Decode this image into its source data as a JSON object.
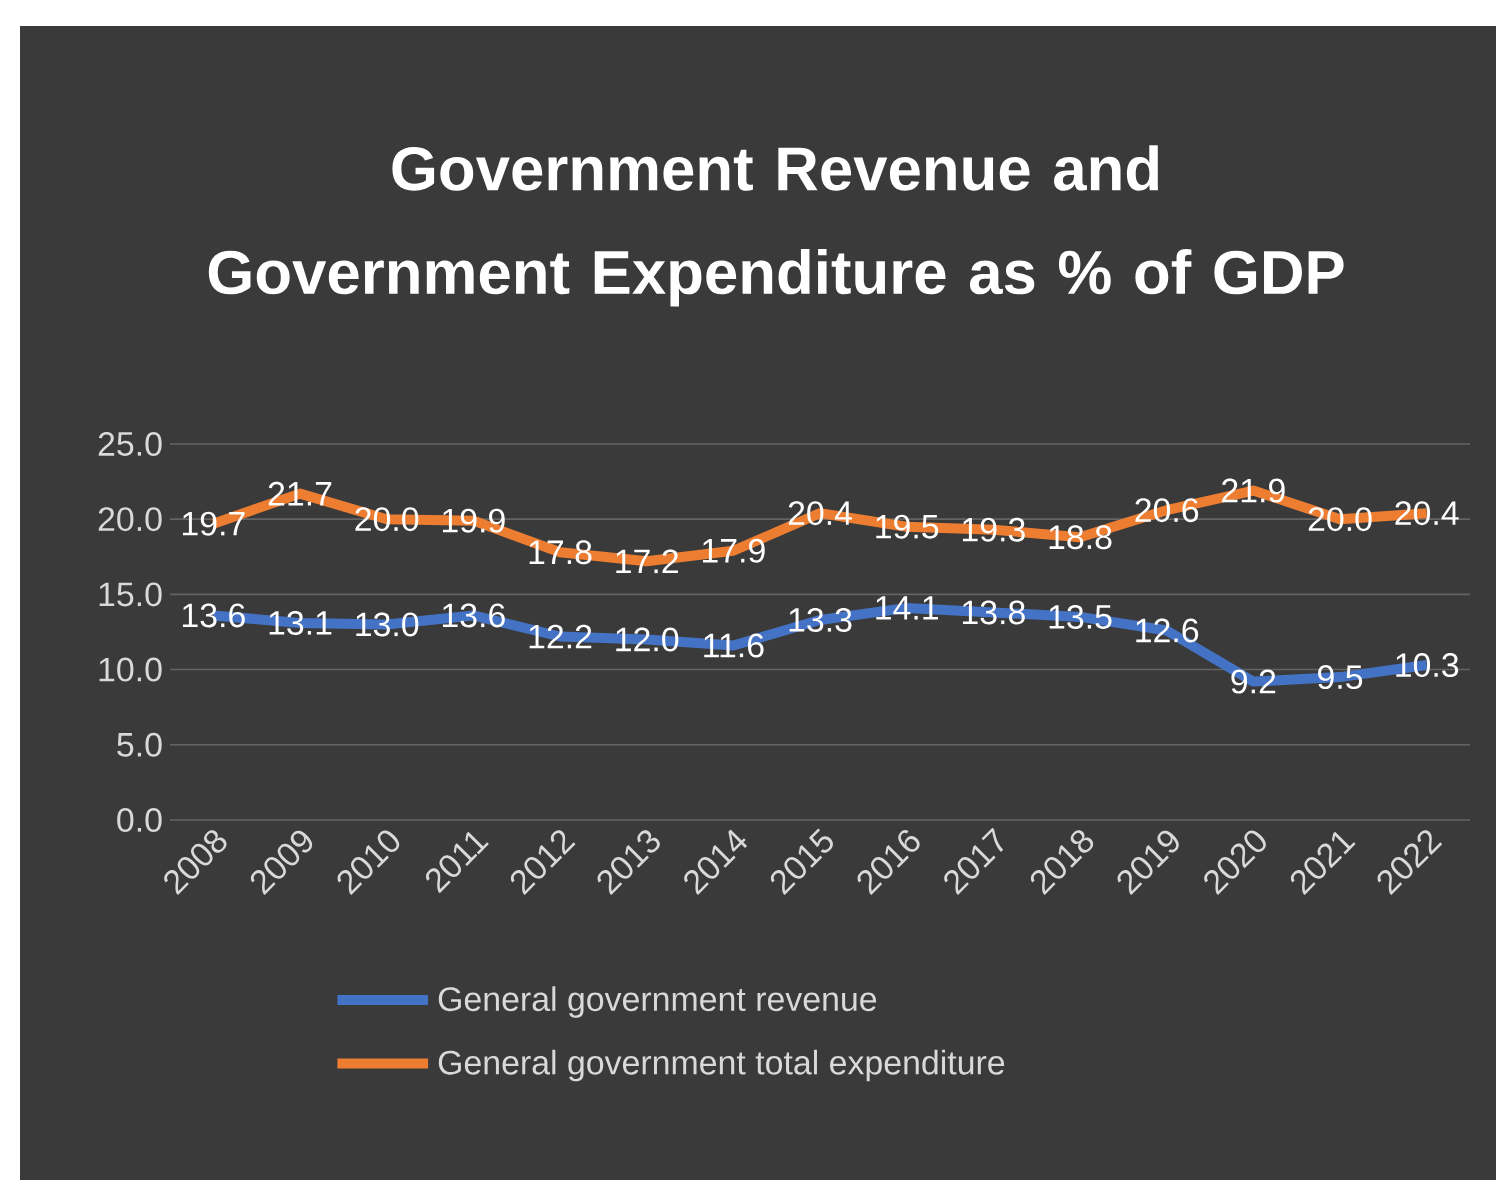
{
  "chart_data": {
    "type": "line",
    "title": "Government Revenue and Government Expenditure as % of GDP",
    "categories": [
      "2008",
      "2009",
      "2010",
      "2011",
      "2012",
      "2013",
      "2014",
      "2015",
      "2016",
      "2017",
      "2018",
      "2019",
      "2020",
      "2021",
      "2022"
    ],
    "series": [
      {
        "name": "General government revenue",
        "color": "#4472c4",
        "values": [
          13.6,
          13.1,
          13.0,
          13.6,
          12.2,
          12.0,
          11.6,
          13.3,
          14.1,
          13.8,
          13.5,
          12.6,
          9.2,
          9.5,
          10.3
        ],
        "value_labels": [
          "13.6",
          "13.1",
          "13.0",
          "13.6",
          "12.2",
          "12.0",
          "11.6",
          "13.3",
          "14.1",
          "13.8",
          "13.5",
          "12.6",
          "9.2",
          "9.5",
          "10.3"
        ]
      },
      {
        "name": "General government total expenditure",
        "color": "#ed7d31",
        "values": [
          19.7,
          21.7,
          20.0,
          19.9,
          17.8,
          17.2,
          17.9,
          20.4,
          19.5,
          19.3,
          18.8,
          20.6,
          21.9,
          20.0,
          20.4
        ],
        "value_labels": [
          "19.7",
          "21.7",
          "20.0",
          "19.9",
          "17.8",
          "17.2",
          "17.9",
          "20.4",
          "19.5",
          "19.3",
          "18.8",
          "20.6",
          "21.9",
          "20.0",
          "20.4"
        ]
      }
    ],
    "ylim": [
      0,
      25
    ],
    "yticks": [
      {
        "value": 0,
        "label": "0.0"
      },
      {
        "value": 5,
        "label": "5.0"
      },
      {
        "value": 10,
        "label": "10.0"
      },
      {
        "value": 15,
        "label": "15.0"
      },
      {
        "value": 20,
        "label": "20.0"
      },
      {
        "value": 25,
        "label": "25.0"
      }
    ],
    "grid": "y",
    "legend": "bottom",
    "marker": "none",
    "line_style": "solid"
  }
}
